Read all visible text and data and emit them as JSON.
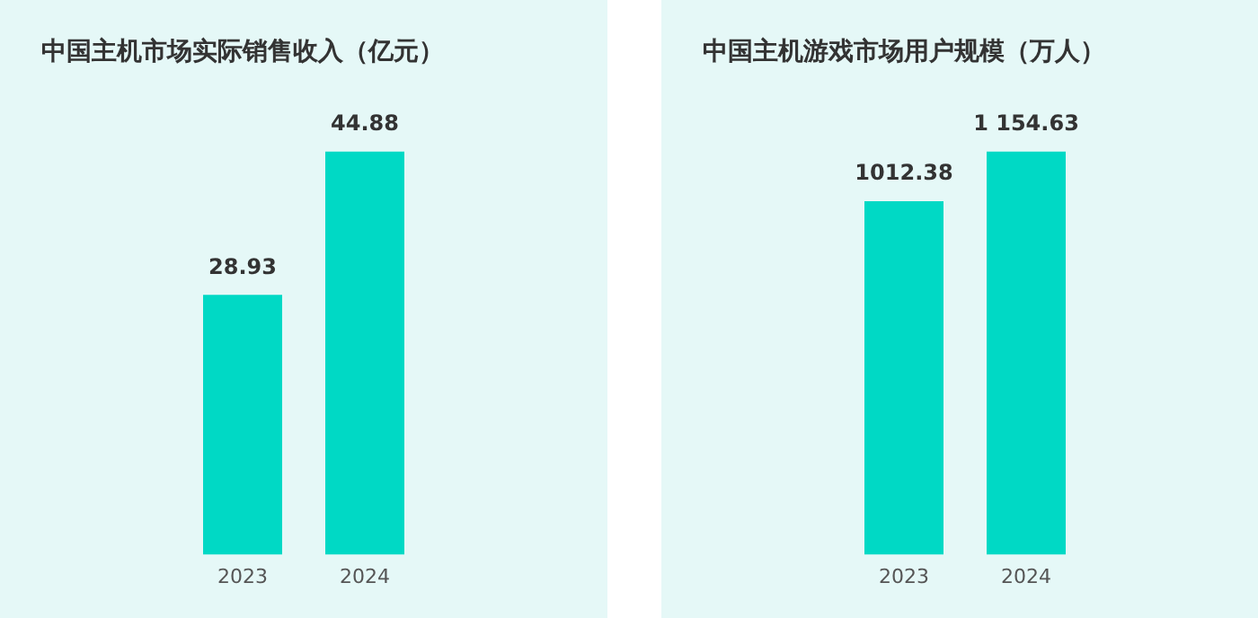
{
  "chart_data": [
    {
      "type": "bar",
      "title": "中国主机市场实际销售收入（亿元）",
      "categories": [
        "2023",
        "2024"
      ],
      "values": [
        28.93,
        44.88
      ],
      "color": "#00d9c5",
      "data_labels": true,
      "grid": false,
      "legend": false
    },
    {
      "type": "bar",
      "title": "中国主机游戏市场用户规模（万人）",
      "categories": [
        "2023",
        "2024"
      ],
      "values": [
        1012.38,
        1154.63
      ],
      "color": "#00d9c5",
      "value_labels": [
        "1012.38",
        "1 154.63"
      ],
      "grid": false,
      "legend": false
    }
  ]
}
